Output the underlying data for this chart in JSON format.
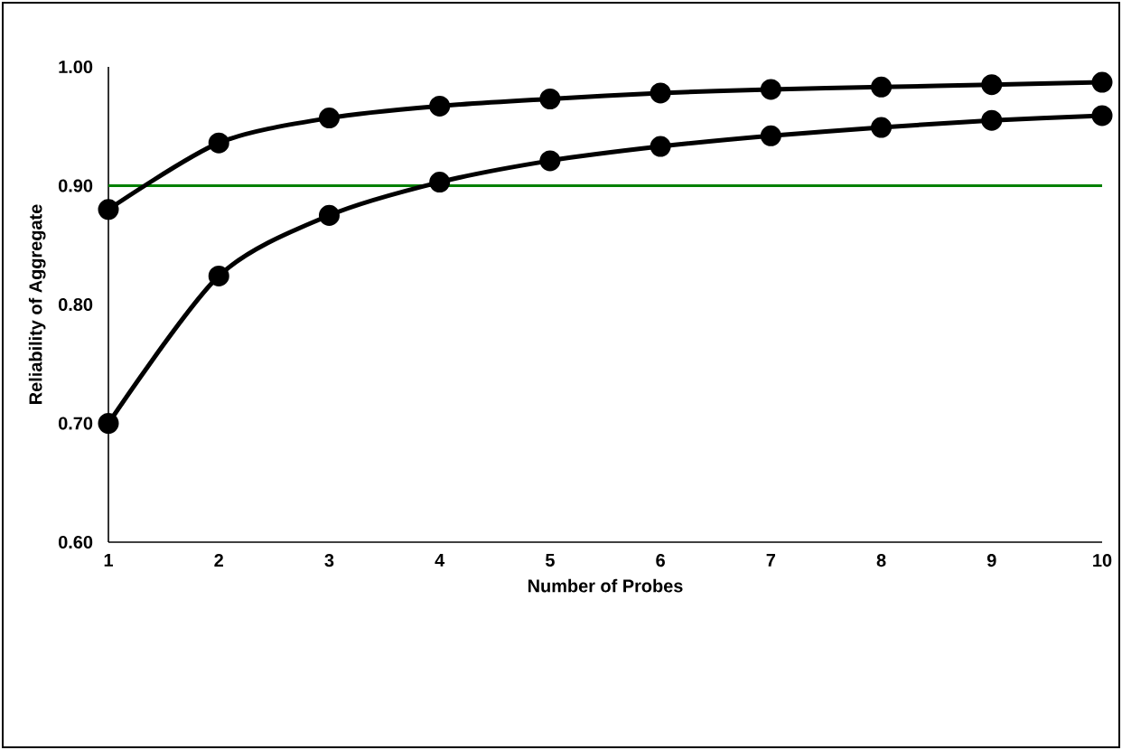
{
  "chart_data": {
    "type": "line",
    "xlabel": "Number of Probes",
    "ylabel": "Reliability of Aggregate",
    "x": [
      1,
      2,
      3,
      4,
      5,
      6,
      7,
      8,
      9,
      10
    ],
    "series": [
      {
        "color": "#000000",
        "values": [
          0.88,
          0.936,
          0.957,
          0.967,
          0.973,
          0.978,
          0.981,
          0.983,
          0.985,
          0.987
        ]
      },
      {
        "color": "#000000",
        "values": [
          0.7,
          0.824,
          0.875,
          0.903,
          0.921,
          0.933,
          0.942,
          0.949,
          0.955,
          0.959
        ]
      }
    ],
    "xlim": [
      1,
      10
    ],
    "xticks": [
      1,
      2,
      3,
      4,
      5,
      6,
      7,
      8,
      9,
      10
    ],
    "ylim": [
      0.6,
      1.0
    ],
    "yticks": [
      {
        "value": 0.6,
        "label": "0.60"
      },
      {
        "value": 0.7,
        "label": "0.70"
      },
      {
        "value": 0.8,
        "label": "0.80"
      },
      {
        "value": 0.9,
        "label": "0.90"
      },
      {
        "value": 1.0,
        "label": "1.00"
      }
    ],
    "ref_lines": [
      {
        "axis": "y",
        "value": 0.9,
        "color": "#008000"
      }
    ],
    "marker": "circle",
    "line_style": "solid",
    "grid": false
  }
}
